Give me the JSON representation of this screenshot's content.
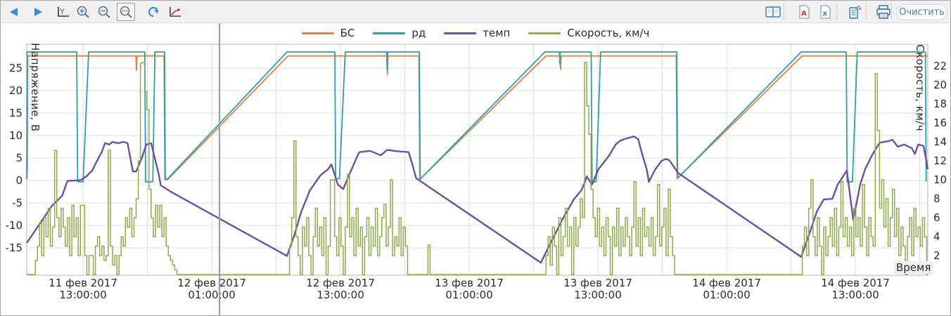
{
  "toolbar": {
    "clear_label": "Очистить",
    "buttons": [
      {
        "name": "back",
        "icon": "arrow-left-icon",
        "active": false
      },
      {
        "name": "forward",
        "icon": "arrow-right-icon",
        "active": false
      },
      {
        "name": "y-axis-scale",
        "icon": "y-axis-icon",
        "active": false
      },
      {
        "name": "zoom-in",
        "icon": "magnifier-plus-icon",
        "active": false
      },
      {
        "name": "zoom-out",
        "icon": "magnifier-minus-icon",
        "active": false
      },
      {
        "name": "zoom-reset",
        "icon": "magnifier-dots-icon",
        "active": true
      },
      {
        "name": "refresh",
        "icon": "refresh-icon",
        "active": false
      },
      {
        "name": "chart-settings",
        "icon": "axis-chart-icon",
        "active": false
      },
      {
        "name": "report",
        "icon": "book-icon",
        "active": false
      },
      {
        "name": "export-pdf",
        "icon": "pdf-file-icon",
        "active": false
      },
      {
        "name": "export-excel",
        "icon": "excel-file-icon",
        "active": false
      },
      {
        "name": "copy-data",
        "icon": "page-arrow-icon",
        "active": false
      },
      {
        "name": "print",
        "icon": "printer-icon",
        "active": false
      }
    ]
  },
  "legend": [
    {
      "label": "БС",
      "color": "#dd853f"
    },
    {
      "label": "рд",
      "color": "#2d9fb0"
    },
    {
      "label": "темп",
      "color": "#6b519e"
    },
    {
      "label": "Скорость, км/ч",
      "color": "#8dab4a"
    }
  ],
  "chart_data": {
    "type": "line",
    "x_axis": {
      "label": "Время",
      "unit": "hours-from-left-edge",
      "range_hours": [
        0,
        84
      ],
      "grid_step_hours": 6,
      "tick_hours": [
        5.25,
        17.25,
        29.25,
        41.25,
        53.25,
        65.25,
        77.25
      ],
      "tick_labels": [
        [
          "11 фев 2017",
          "13:00:00"
        ],
        [
          "12 фев 2017",
          "01:00:00"
        ],
        [
          "12 фев 2017",
          "13:00:00"
        ],
        [
          "13 фев 2017",
          "01:00:00"
        ],
        [
          "13 фев 2017",
          "13:00:00"
        ],
        [
          "14 фев 2017",
          "01:00:00"
        ],
        [
          "14 фев 2017",
          "13:00:00"
        ]
      ]
    },
    "y_left": {
      "label": "Напряжение, В",
      "ticks": [
        -15,
        -10,
        -5,
        0,
        5,
        10,
        15,
        20,
        25
      ],
      "range": [
        -21,
        30.3
      ]
    },
    "y_right": {
      "label": "Скорость, км/ч",
      "ticks": [
        2,
        4,
        6,
        8,
        10,
        12,
        14,
        16,
        18,
        20,
        22
      ],
      "range": [
        0,
        24.3
      ]
    },
    "cursor": {
      "hour": 17.97,
      "color": "#8d95d5"
    },
    "grid_color": "#dcdcdc",
    "border_color": "#b5b5b5",
    "series": [
      {
        "name": "БС",
        "color": "#dd853f",
        "axis": "left",
        "render": "line",
        "points": [
          [
            0,
            0.5
          ],
          [
            0.05,
            2.0
          ],
          [
            0.1,
            27.7
          ],
          [
            10.18,
            27.7
          ],
          [
            10.23,
            24.5
          ],
          [
            10.28,
            27.7
          ],
          [
            12.8,
            27.7
          ],
          [
            12.88,
            0.2
          ],
          [
            13.15,
            0.2
          ],
          [
            24.35,
            27.7
          ],
          [
            33.58,
            27.7
          ],
          [
            33.63,
            23.6
          ],
          [
            33.68,
            27.7
          ],
          [
            36.56,
            27.7
          ],
          [
            36.64,
            0.2
          ],
          [
            48.4,
            27.7
          ],
          [
            49.72,
            27.7
          ],
          [
            49.77,
            24.7
          ],
          [
            49.82,
            27.7
          ],
          [
            60.55,
            27.7
          ],
          [
            60.63,
            0.4
          ],
          [
            72.28,
            27.7
          ],
          [
            84,
            27.7
          ]
        ]
      },
      {
        "name": "рд",
        "color": "#2d9fb0",
        "axis": "left",
        "render": "line",
        "points": [
          [
            0,
            0.3
          ],
          [
            0.03,
            28.6
          ],
          [
            4.66,
            28.6
          ],
          [
            4.74,
            -0.3
          ],
          [
            5.25,
            -0.3
          ],
          [
            5.77,
            28.6
          ],
          [
            11.0,
            28.6
          ],
          [
            11.08,
            -0.3
          ],
          [
            11.75,
            -0.3
          ],
          [
            11.95,
            28.6
          ],
          [
            12.85,
            28.6
          ],
          [
            12.92,
            0.3
          ],
          [
            13.1,
            0.3
          ],
          [
            24.26,
            28.6
          ],
          [
            28.72,
            28.6
          ],
          [
            28.8,
            0.4
          ],
          [
            29.15,
            0.4
          ],
          [
            29.7,
            28.6
          ],
          [
            33.55,
            28.6
          ],
          [
            33.6,
            24.7
          ],
          [
            33.65,
            28.6
          ],
          [
            36.6,
            28.6
          ],
          [
            36.68,
            0.3
          ],
          [
            48.3,
            28.6
          ],
          [
            49.66,
            28.6
          ],
          [
            49.7,
            25.9
          ],
          [
            49.74,
            28.6
          ],
          [
            52.62,
            28.6
          ],
          [
            52.7,
            -0.3
          ],
          [
            53.08,
            -0.3
          ],
          [
            53.5,
            28.6
          ],
          [
            60.6,
            28.6
          ],
          [
            60.68,
            0.5
          ],
          [
            72.2,
            28.6
          ],
          [
            76.4,
            28.6
          ],
          [
            76.48,
            -0.3
          ],
          [
            76.98,
            -0.3
          ],
          [
            77.42,
            28.6
          ],
          [
            83.78,
            28.6
          ],
          [
            83.85,
            -0.2
          ]
        ]
      },
      {
        "name": "темп",
        "color": "#6b519e",
        "axis": "left",
        "render": "line",
        "points": [
          [
            0,
            -13.9
          ],
          [
            1.2,
            -9.7
          ],
          [
            2.3,
            -5.8
          ],
          [
            3.3,
            -3.4
          ],
          [
            3.8,
            -0.1
          ],
          [
            4.6,
            0.0
          ],
          [
            5.0,
            0.1
          ],
          [
            5.25,
            0.4
          ],
          [
            5.6,
            1.0
          ],
          [
            6.1,
            2.2
          ],
          [
            6.5,
            4.1
          ],
          [
            7.0,
            6.4
          ],
          [
            7.3,
            8.3
          ],
          [
            7.7,
            8.0
          ],
          [
            8.0,
            8.6
          ],
          [
            8.5,
            8.3
          ],
          [
            9.0,
            8.6
          ],
          [
            9.4,
            8.3
          ],
          [
            9.9,
            2.0
          ],
          [
            10.2,
            2.0
          ],
          [
            10.7,
            4.8
          ],
          [
            11.15,
            8.0
          ],
          [
            11.6,
            8.3
          ],
          [
            12.3,
            1.4
          ],
          [
            12.5,
            -1.1
          ],
          [
            13.5,
            -2.6
          ],
          [
            24.26,
            -16.8
          ],
          [
            24.9,
            -12.5
          ],
          [
            25.6,
            -6.9
          ],
          [
            26.4,
            -2.2
          ],
          [
            27.4,
            1.2
          ],
          [
            28.1,
            2.5
          ],
          [
            28.4,
            3.6
          ],
          [
            29.0,
            -0.9
          ],
          [
            29.5,
            -1.9
          ],
          [
            30.0,
            0.9
          ],
          [
            30.7,
            4.8
          ],
          [
            31.0,
            6.3
          ],
          [
            32.0,
            6.6
          ],
          [
            33.0,
            5.6
          ],
          [
            33.6,
            6.8
          ],
          [
            34.6,
            6.5
          ],
          [
            35.6,
            6.3
          ],
          [
            35.9,
            4.0
          ],
          [
            36.3,
            0.5
          ],
          [
            47.93,
            -18.3
          ],
          [
            49.0,
            -13.1
          ],
          [
            50.0,
            -8.4
          ],
          [
            51.0,
            -4.2
          ],
          [
            51.7,
            -2.2
          ],
          [
            52.0,
            -0.6
          ],
          [
            52.2,
            0.9
          ],
          [
            52.7,
            -0.9
          ],
          [
            53.3,
            2.5
          ],
          [
            53.8,
            4.0
          ],
          [
            54.3,
            5.6
          ],
          [
            54.9,
            8.0
          ],
          [
            55.3,
            8.8
          ],
          [
            55.7,
            9.2
          ],
          [
            56.6,
            9.8
          ],
          [
            57.0,
            9.2
          ],
          [
            57.4,
            5.6
          ],
          [
            57.8,
            2.5
          ],
          [
            58.0,
            -0.3
          ],
          [
            58.6,
            2.5
          ],
          [
            59.2,
            4.4
          ],
          [
            59.6,
            4.8
          ],
          [
            59.9,
            4.5
          ],
          [
            60.4,
            2.8
          ],
          [
            60.7,
            1.7
          ],
          [
            72.2,
            -17.0
          ],
          [
            73.0,
            -11.6
          ],
          [
            73.66,
            -6.9
          ],
          [
            74.3,
            -4.2
          ],
          [
            75.1,
            -4.1
          ],
          [
            75.6,
            -0.9
          ],
          [
            76.1,
            0.9
          ],
          [
            76.46,
            2.2
          ],
          [
            77.05,
            -8.8
          ],
          [
            77.7,
            -0.9
          ],
          [
            78.16,
            2.5
          ],
          [
            78.8,
            5.6
          ],
          [
            79.5,
            8.4
          ],
          [
            80.4,
            8.8
          ],
          [
            80.7,
            9.1
          ],
          [
            81.2,
            7.5
          ],
          [
            81.8,
            8.0
          ],
          [
            82.5,
            7.2
          ],
          [
            82.8,
            5.9
          ],
          [
            83.1,
            8.0
          ],
          [
            83.6,
            7.7
          ],
          [
            83.87,
            4.4
          ],
          [
            84,
            2.5
          ]
        ]
      },
      {
        "name": "Скорость, км/ч",
        "color": "#8dab4a",
        "axis": "right",
        "render": "steps",
        "baseline": 0,
        "segments": [
          {
            "start": 0.8,
            "dt": 0.2,
            "values": [
              1.5,
              3,
              5.5,
              2,
              6,
              4,
              7,
              3,
              5,
              13.1,
              6,
              4,
              7,
              5,
              3,
              6,
              2,
              7.3,
              4,
              6,
              2,
              7.3,
              7.3,
              2,
              0,
              2,
              2,
              0,
              3,
              4,
              2,
              3,
              1.5,
              2,
              13.1,
              3,
              1,
              2,
              0,
              2,
              4,
              3,
              6,
              5,
              7,
              4,
              6,
              8,
              12,
              22.3,
              22.4,
              19.3,
              17.4,
              9,
              6,
              4,
              7.3,
              5,
              7.3,
              4,
              6,
              3,
              2,
              1.5,
              1,
              0.5
            ]
          },
          {
            "start": 24.5,
            "dt": 0.2,
            "values": [
              3,
              6,
              14.1,
              4,
              2,
              0,
              5,
              3,
              6,
              2,
              0,
              4,
              7,
              3,
              5,
              2,
              6,
              0,
              3,
              10,
              10,
              4,
              2,
              6,
              3,
              0,
              5,
              10.6,
              4,
              6,
              2,
              7,
              3,
              5,
              0,
              4,
              6,
              2,
              5,
              3,
              7,
              2,
              4,
              6,
              7.4,
              3,
              5,
              10,
              2,
              4,
              3,
              6,
              2,
              5,
              3,
              0
            ]
          },
          {
            "start": 37.4,
            "dt": 0.2,
            "values": [
              3.1
            ]
          },
          {
            "start": 48.4,
            "dt": 0.2,
            "values": [
              2,
              4,
              1,
              5,
              3,
              0,
              6,
              2,
              4,
              7,
              3,
              5,
              0,
              6,
              3,
              5,
              8,
              6,
              22.4,
              17.8,
              14.8,
              9,
              6,
              4,
              7,
              3,
              5,
              2,
              6,
              4,
              0,
              5,
              3,
              7,
              2,
              5,
              3,
              6,
              4,
              2,
              5,
              9.8,
              3,
              6,
              2,
              7,
              4,
              5,
              3,
              6,
              2,
              4,
              9.5,
              3,
              5,
              7,
              2,
              9,
              4,
              2
            ]
          },
          {
            "start": 72.3,
            "dt": 0.2,
            "values": [
              3,
              5,
              2,
              7,
              10,
              4,
              2,
              6,
              3,
              0,
              5,
              2,
              4,
              6,
              3,
              7,
              2,
              5,
              9.8,
              4,
              6,
              3,
              5,
              2,
              7,
              4,
              6,
              3,
              9.5,
              5,
              2,
              6,
              4,
              3,
              21.2,
              15.2,
              7,
              10,
              5,
              8,
              3,
              6,
              9,
              4,
              7,
              2,
              5,
              3,
              0,
              4,
              6,
              2,
              7,
              4,
              5,
              3,
              6,
              4
            ]
          }
        ]
      }
    ]
  }
}
